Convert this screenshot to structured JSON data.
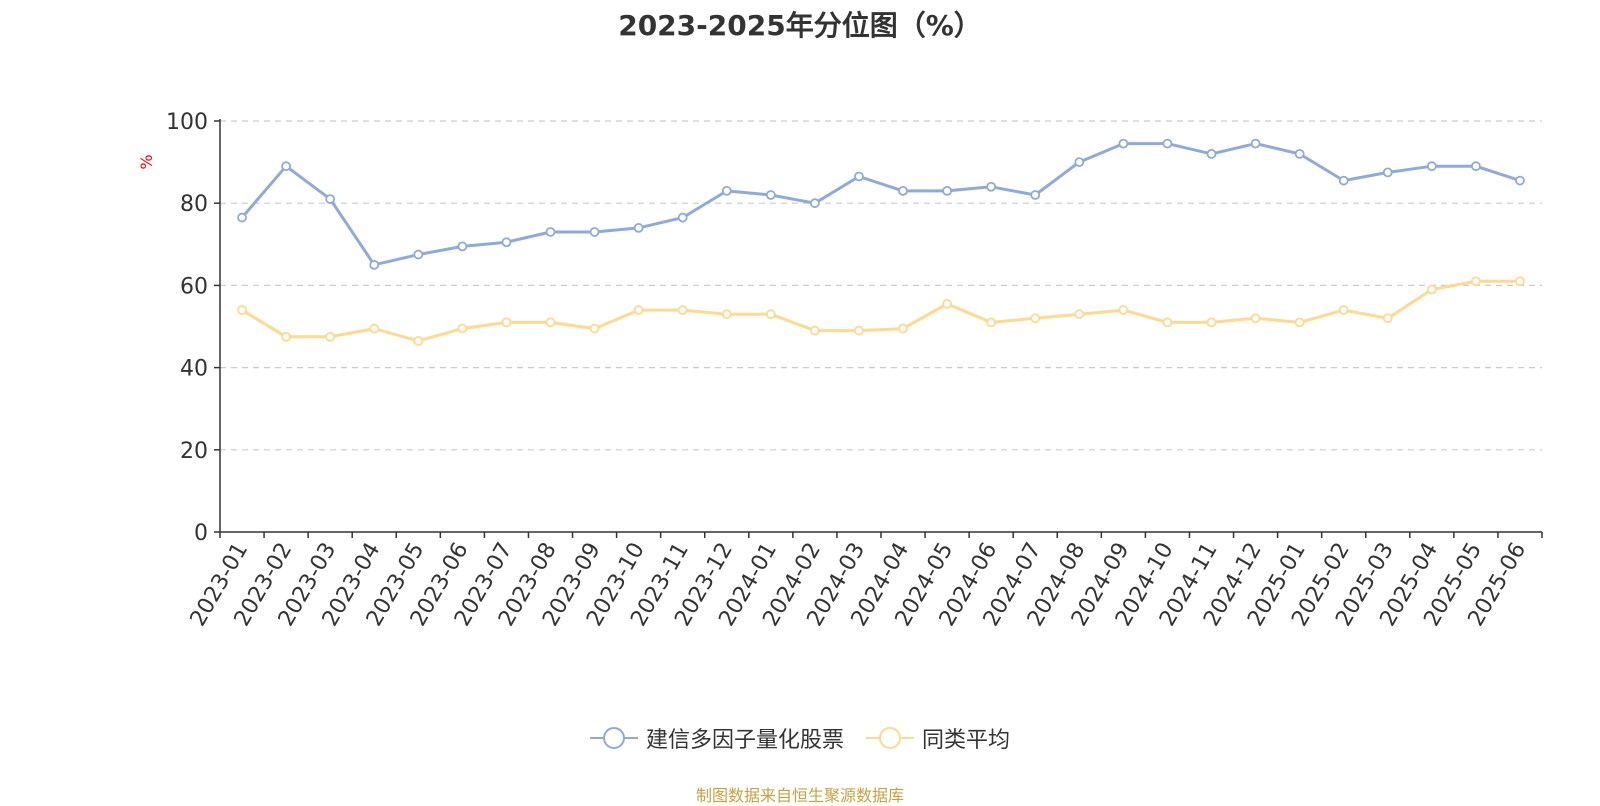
{
  "title": "2023-2025年分位图（%）",
  "source": "制图数据来自恒生聚源数据库",
  "colors": {
    "series1": "#8eaadb",
    "series2": "#ffd98e",
    "source": "#c8a040",
    "axis": "#333333",
    "grid": "#cccccc",
    "unit": "#ff0000"
  },
  "chart_data": {
    "type": "line",
    "title": "2023-2025年分位图（%）",
    "ylabel": "%",
    "ylim": [
      0,
      100
    ],
    "yticks": [
      "0",
      "20",
      "40",
      "60",
      "80",
      "100"
    ],
    "grid": true,
    "legend_position": "bottom-center",
    "categories": [
      "2023-01",
      "2023-02",
      "2023-03",
      "2023-04",
      "2023-05",
      "2023-06",
      "2023-07",
      "2023-08",
      "2023-09",
      "2023-10",
      "2023-11",
      "2023-12",
      "2024-01",
      "2024-02",
      "2024-03",
      "2024-04",
      "2024-05",
      "2024-06",
      "2024-07",
      "2024-08",
      "2024-09",
      "2024-10",
      "2024-11",
      "2024-12",
      "2025-01",
      "2025-02",
      "2025-03",
      "2025-04",
      "2025-05",
      "2025-06"
    ],
    "series": [
      {
        "name": "建信多因子量化股票",
        "values": [
          76.5,
          89,
          81,
          65,
          67.5,
          69.5,
          70.5,
          73,
          73,
          74,
          76.5,
          83,
          82,
          80,
          86.5,
          83,
          83,
          84,
          82,
          90,
          94.5,
          94.5,
          92,
          94.5,
          92,
          85.5,
          87.5,
          89,
          89,
          85.5
        ]
      },
      {
        "name": "同类平均",
        "values": [
          54,
          47.5,
          47.5,
          49.5,
          46.5,
          49.5,
          51,
          51,
          49.5,
          54,
          54,
          53,
          53,
          49,
          49,
          49.5,
          55.5,
          51,
          52,
          53,
          54,
          51,
          51,
          52,
          51,
          54,
          52,
          59,
          61,
          61
        ]
      }
    ]
  }
}
